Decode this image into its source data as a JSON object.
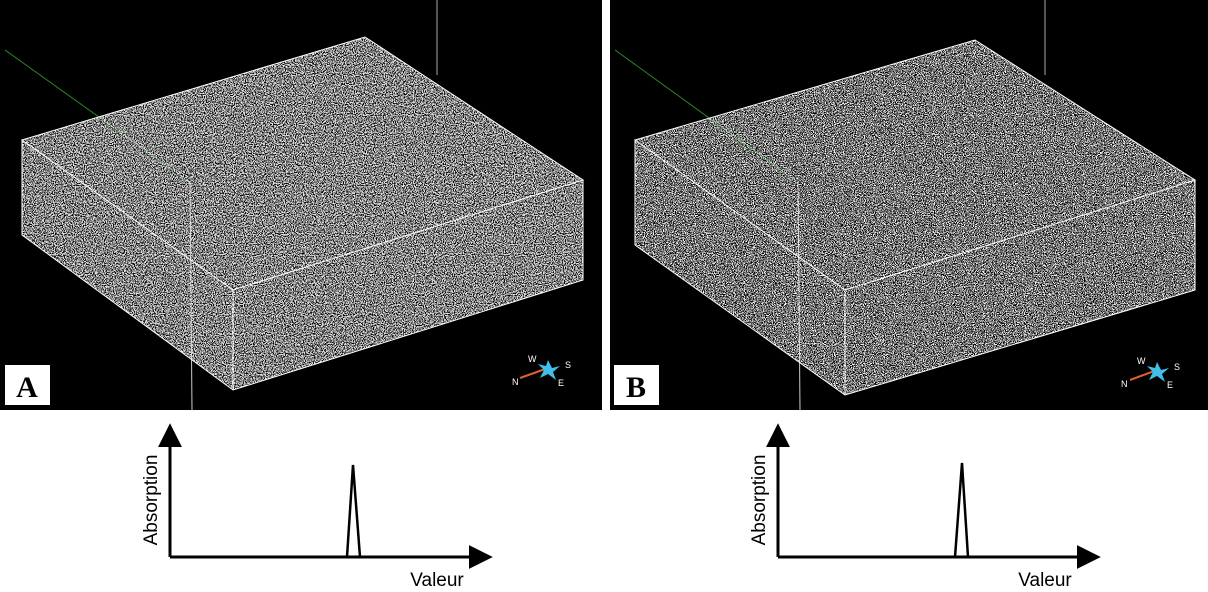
{
  "panels": [
    {
      "label": "A",
      "compass": {
        "w": "W",
        "s": "S",
        "n": "N",
        "e": "E"
      },
      "plot": {
        "y_label": "Absorption",
        "x_label": "Valeur"
      }
    },
    {
      "label": "B",
      "compass": {
        "w": "W",
        "s": "S",
        "n": "N",
        "e": "E"
      },
      "plot": {
        "y_label": "Absorption",
        "x_label": "Valeur"
      }
    }
  ]
}
